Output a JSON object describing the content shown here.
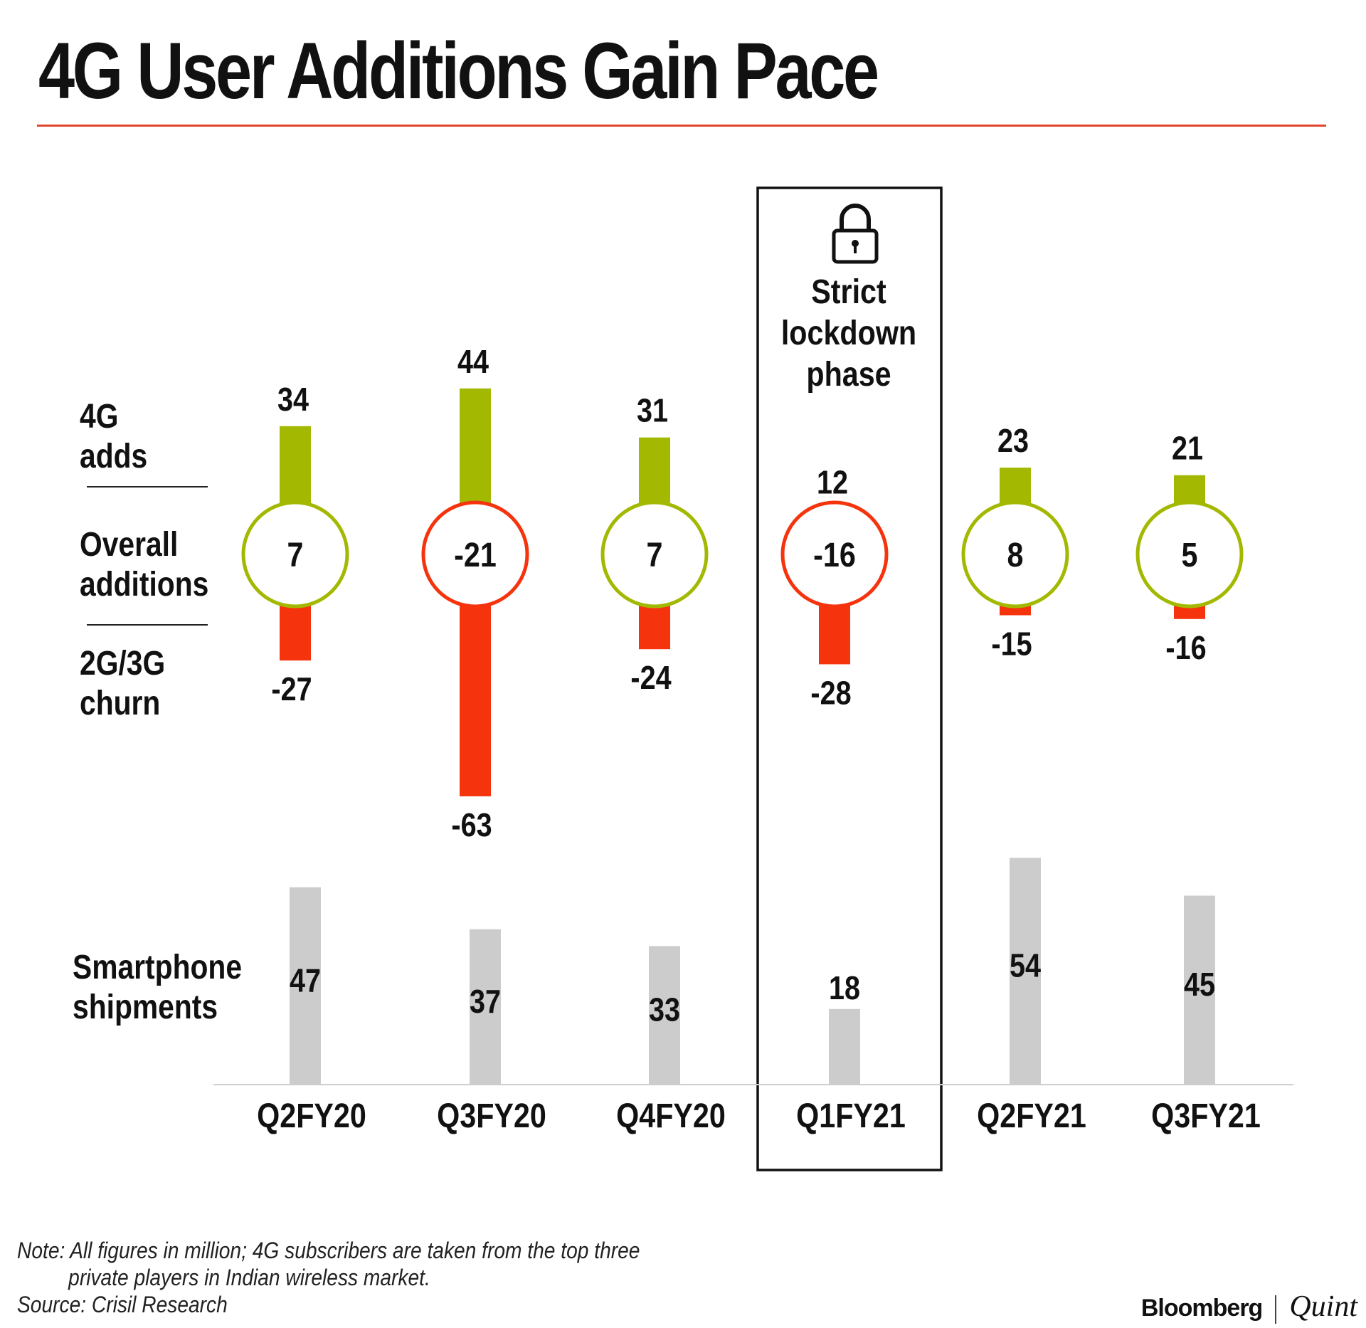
{
  "title": "4G User Additions Gain Pace",
  "row_labels": {
    "adds": [
      "4G",
      "adds"
    ],
    "overall": [
      "Overall",
      "additions"
    ],
    "churn": [
      "2G/3G",
      "churn"
    ],
    "shipments": [
      "Smartphone",
      "shipments"
    ]
  },
  "highlight": {
    "label_lines": [
      "Strict",
      "lockdown",
      "phase"
    ],
    "icon": "lock-icon",
    "category": "Q1FY21"
  },
  "colors": {
    "positive": "#a3b800",
    "negative": "#f5330c",
    "shipments": "#cccccc",
    "title_rule": "#e2452b"
  },
  "chart_data": {
    "type": "bar",
    "title": "4G User Additions Gain Pace",
    "categories": [
      "Q2FY20",
      "Q3FY20",
      "Q4FY20",
      "Q1FY21",
      "Q2FY21",
      "Q3FY21"
    ],
    "units": "million",
    "series": [
      {
        "name": "4G adds",
        "values": [
          34,
          44,
          31,
          12,
          23,
          21
        ]
      },
      {
        "name": "2G/3G churn",
        "values": [
          -27,
          -63,
          -24,
          -28,
          -15,
          -16
        ]
      },
      {
        "name": "Overall additions",
        "values": [
          7,
          -21,
          7,
          -16,
          8,
          5
        ]
      },
      {
        "name": "Smartphone shipments",
        "values": [
          47,
          37,
          33,
          18,
          54,
          45
        ]
      }
    ]
  },
  "note": {
    "line1": "Note: All figures in million; 4G subscribers are taken from the top three",
    "line2": "private players in Indian wireless market.",
    "source": "Source: Crisil Research"
  },
  "brand": {
    "primary": "Bloomberg",
    "secondary": "Quint"
  }
}
